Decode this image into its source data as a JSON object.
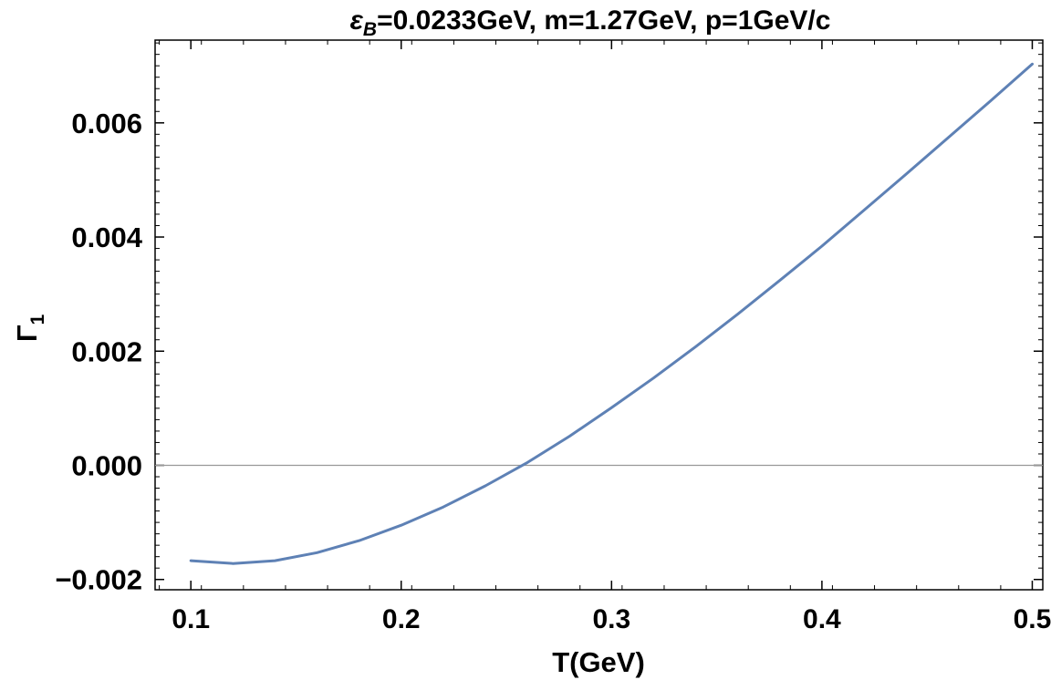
{
  "chart_data": {
    "type": "line",
    "title_prefix": "ε",
    "title_subscript": "B",
    "title_suffix": "=0.0233GeV, m=1.27GeV, p=1GeV/c",
    "xlabel": "T(GeV)",
    "ylabel_main": "Γ",
    "ylabel_sub": "1",
    "xlim": [
      0.083,
      0.505
    ],
    "ylim": [
      -0.00218,
      0.00745
    ],
    "x_ticks": [
      {
        "value": 0.1,
        "label": "0.1"
      },
      {
        "value": 0.2,
        "label": "0.2"
      },
      {
        "value": 0.3,
        "label": "0.3"
      },
      {
        "value": 0.4,
        "label": "0.4"
      },
      {
        "value": 0.5,
        "label": "0.5"
      }
    ],
    "y_ticks": [
      {
        "value": -0.002,
        "label": "−0.002"
      },
      {
        "value": 0.0,
        "label": "0.000"
      },
      {
        "value": 0.002,
        "label": "0.002"
      },
      {
        "value": 0.004,
        "label": "0.004"
      },
      {
        "value": 0.006,
        "label": "0.006"
      }
    ],
    "zero_line": 0,
    "line_color": "#5e81b5",
    "series": [
      {
        "x": [
          0.1,
          0.12,
          0.14,
          0.16,
          0.18,
          0.2,
          0.22,
          0.24,
          0.26,
          0.28,
          0.3,
          0.32,
          0.34,
          0.36,
          0.38,
          0.4,
          0.42,
          0.44,
          0.46,
          0.48,
          0.5
        ],
        "values": [
          -0.00167,
          -0.00172,
          -0.00167,
          -0.00153,
          -0.00132,
          -0.00105,
          -0.00073,
          -0.00036,
          5e-05,
          0.00051,
          0.00101,
          0.00153,
          0.00208,
          0.00265,
          0.00324,
          0.00384,
          0.00447,
          0.0051,
          0.00574,
          0.00638,
          0.00703
        ]
      }
    ]
  }
}
